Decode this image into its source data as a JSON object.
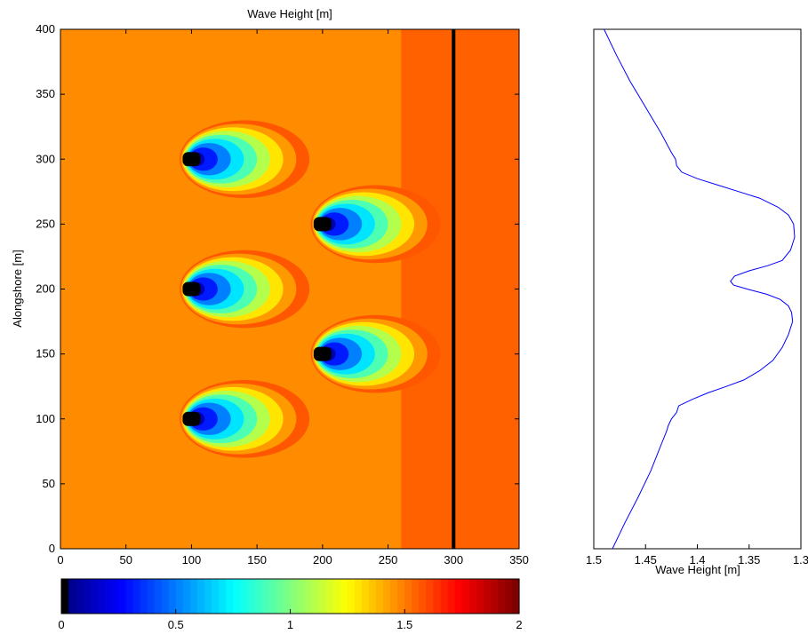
{
  "chart_data": [
    {
      "type": "heatmap",
      "title": "Wave Height [m]",
      "xlabel": "",
      "ylabel": "Alongshore [m]",
      "xlim": [
        0,
        350
      ],
      "ylim": [
        0,
        400
      ],
      "xticks": [
        "0",
        "50",
        "100",
        "150",
        "200",
        "250",
        "300",
        "350"
      ],
      "yticks": [
        "0",
        "50",
        "100",
        "150",
        "200",
        "250",
        "300",
        "350",
        "400"
      ],
      "background_value": 1.7,
      "obstacles": [
        {
          "x": 100,
          "y": 300,
          "min_value": 0.0
        },
        {
          "x": 100,
          "y": 200,
          "min_value": 0.0
        },
        {
          "x": 100,
          "y": 100,
          "min_value": 0.0
        },
        {
          "x": 200,
          "y": 250,
          "min_value": 0.0
        },
        {
          "x": 200,
          "y": 150,
          "min_value": 0.0
        }
      ],
      "profile_line_x": 300,
      "colorbar": {
        "range": [
          0,
          2
        ],
        "ticks": [
          "0",
          "0.5",
          "1",
          "1.5",
          "2"
        ],
        "colormap": "jet"
      }
    },
    {
      "type": "line",
      "title": "",
      "xlabel": "Wave Height [m]",
      "ylabel": "",
      "xlim": [
        1.5,
        1.3
      ],
      "ylim": [
        0,
        400
      ],
      "xticks": [
        "1.5",
        "1.45",
        "1.4",
        "1.35",
        "1.3"
      ],
      "color": "#0000ff",
      "series": [
        {
          "x": [
            1.482,
            1.47,
            1.457,
            1.445,
            1.435,
            1.43,
            1.428,
            1.425,
            1.42,
            1.418,
            1.405,
            1.39,
            1.372,
            1.355,
            1.34,
            1.327,
            1.318,
            1.312,
            1.308,
            1.309,
            1.312,
            1.32,
            1.333,
            1.352,
            1.365,
            1.368,
            1.364,
            1.35,
            1.332,
            1.318,
            1.31,
            1.306,
            1.307,
            1.312,
            1.322,
            1.34,
            1.36,
            1.38,
            1.4,
            1.415,
            1.42,
            1.421,
            1.425,
            1.435,
            1.45,
            1.465,
            1.478,
            1.49
          ],
          "y": [
            0,
            20,
            40,
            60,
            80,
            90,
            95,
            100,
            105,
            110,
            115,
            120,
            125,
            130,
            137,
            145,
            155,
            165,
            175,
            182,
            187,
            192,
            196,
            200,
            203,
            206,
            210,
            214,
            218,
            222,
            230,
            240,
            250,
            257,
            263,
            270,
            275,
            280,
            285,
            290,
            295,
            300,
            305,
            320,
            340,
            360,
            380,
            400
          ]
        }
      ]
    }
  ]
}
